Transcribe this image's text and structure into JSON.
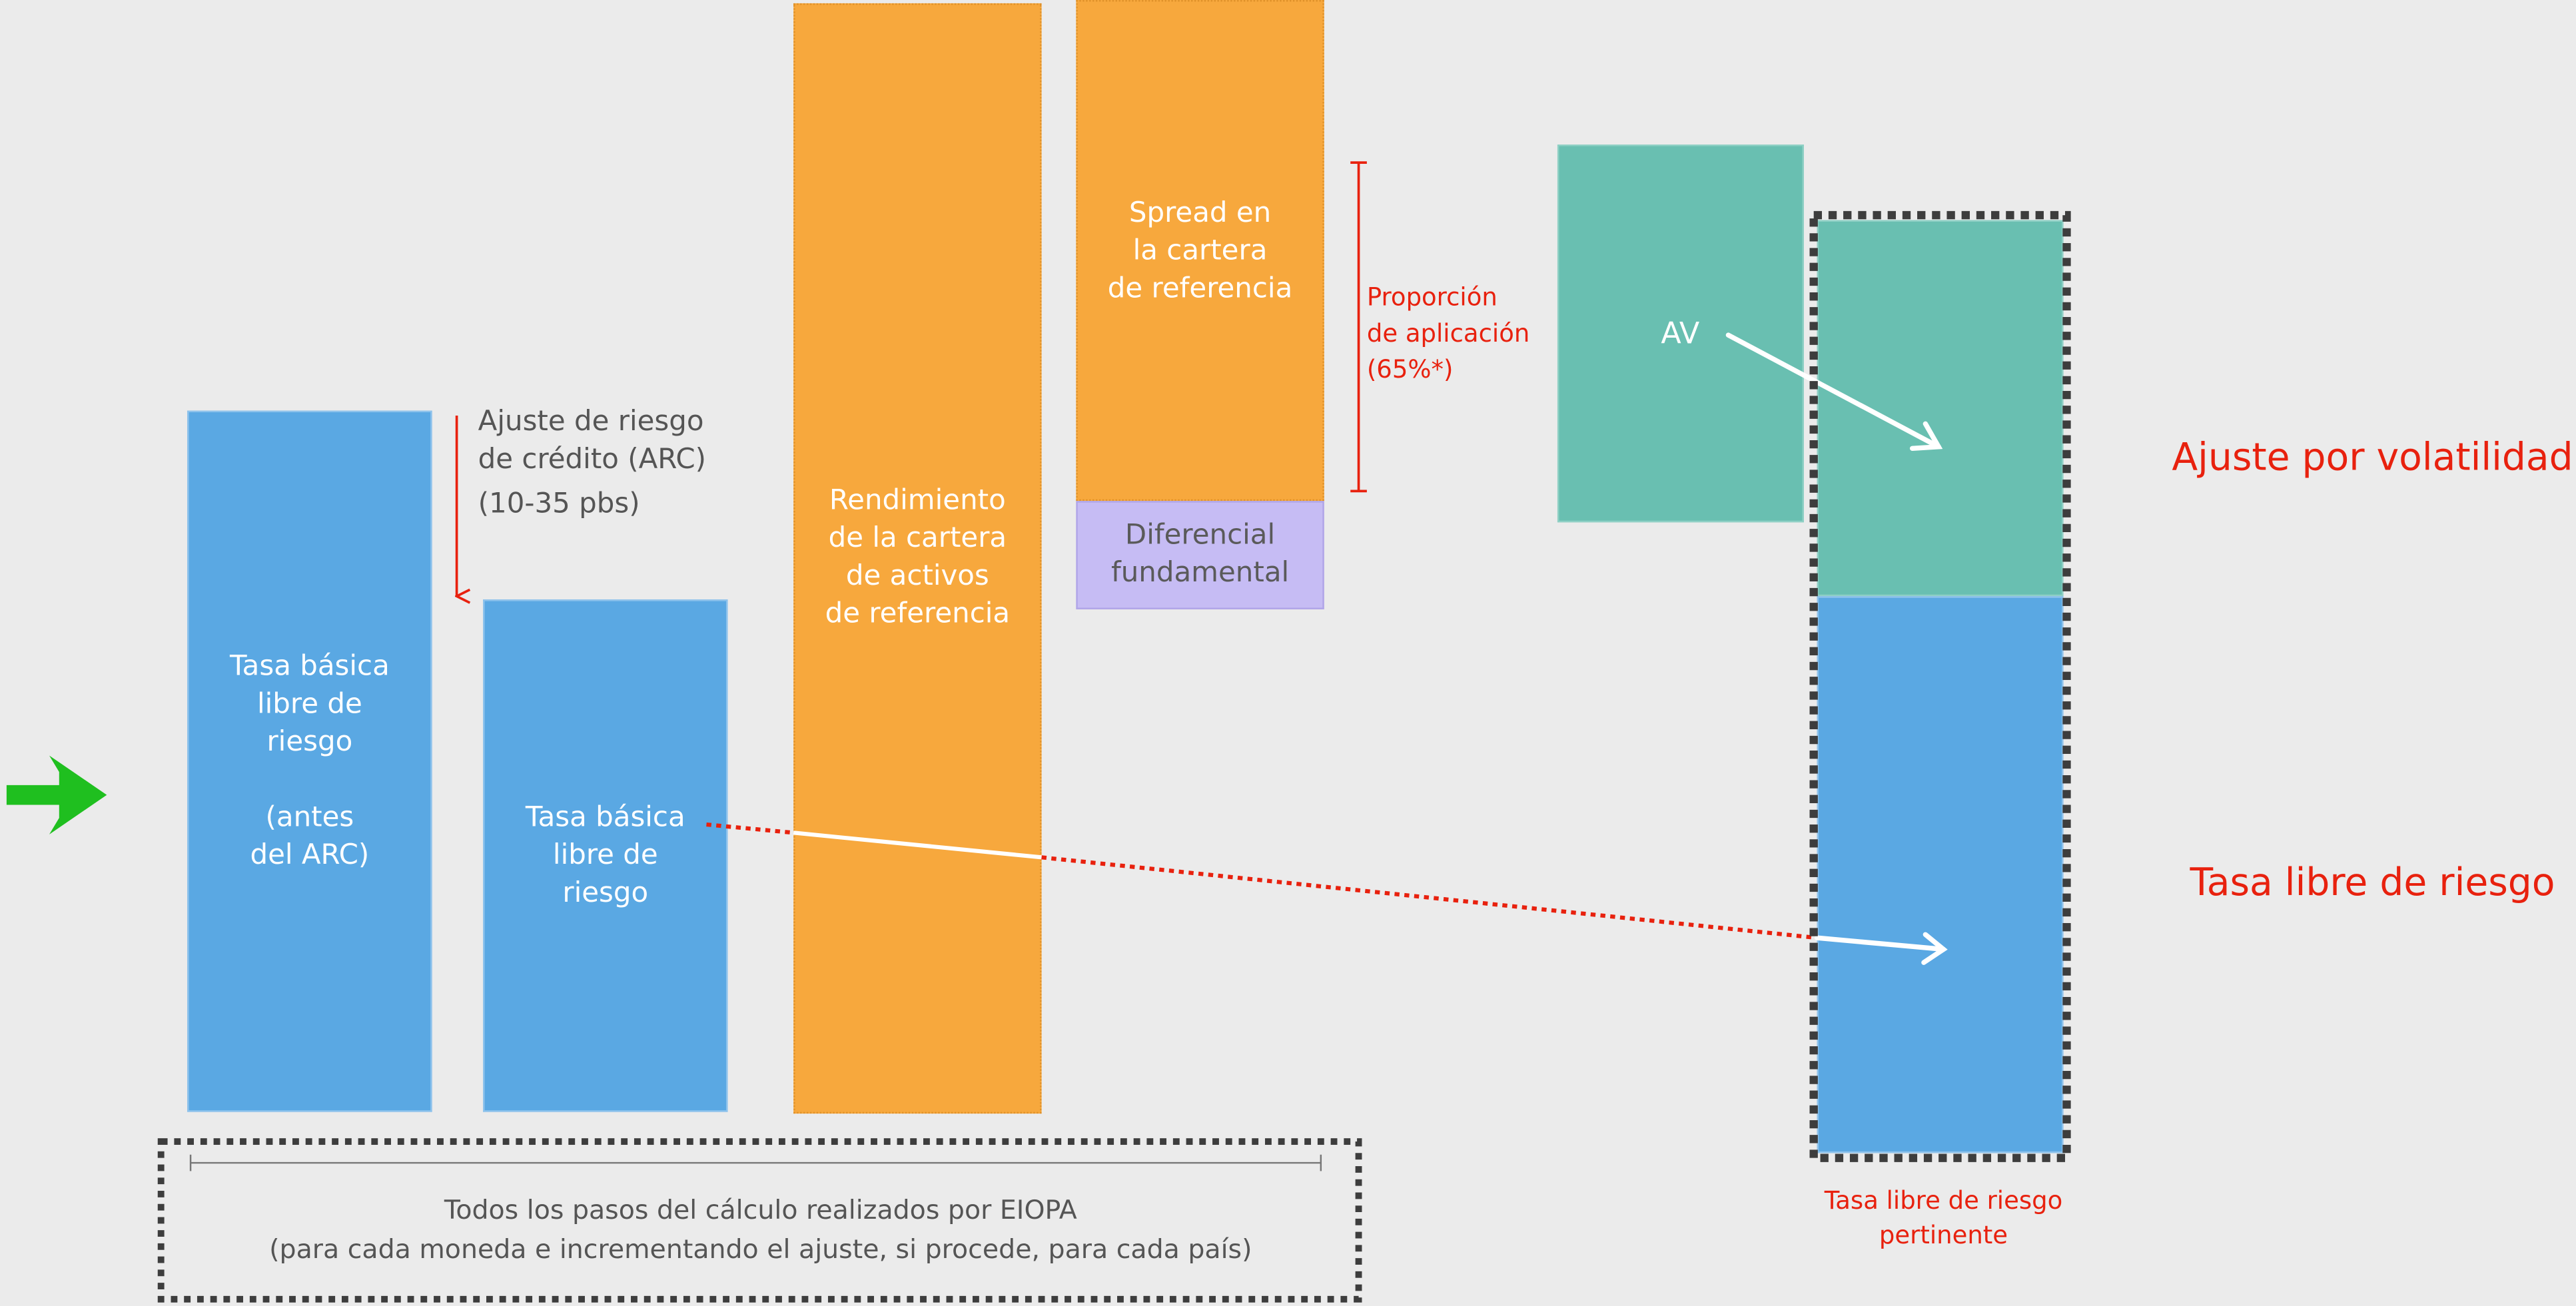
{
  "boxes": {
    "tasa_antes": "Tasa básica\nlibre de\nriesgo\n\n(antes\ndel ARC)",
    "tasa_basica": "Tasa básica\nlibre de\nriesgo",
    "rendimiento": "Rendimiento\nde la cartera\nde activos\nde referencia",
    "spread": "Spread en\nla cartera\nde referencia",
    "diferencial": "Diferencial\nfundamental",
    "av": "AV"
  },
  "annotations": {
    "arc": "Ajuste de riesgo\nde crédito (ARC)",
    "arc_range": "(10-35 pbs)",
    "proporcion": "Proporción\nde aplicación\n(65%*)",
    "ajuste_volatilidad": "Ajuste por volatilidad",
    "tasa_libre": "Tasa libre de riesgo",
    "tasa_pertinente": "Tasa libre de riesgo\npertinente"
  },
  "footer": {
    "line1": "Todos los pasos del cálculo realizados por EIOPA",
    "line2": "(para cada moneda e incrementando el ajuste, si procede, para cada país)"
  },
  "colors": {
    "blue": "#5aa8e3",
    "orange": "#f7a83d",
    "teal": "#69bfb1",
    "lavender": "#c6bcf4",
    "red": "#e8210e",
    "green_arrow": "#1fbf1f",
    "background": "#ebebeb"
  }
}
